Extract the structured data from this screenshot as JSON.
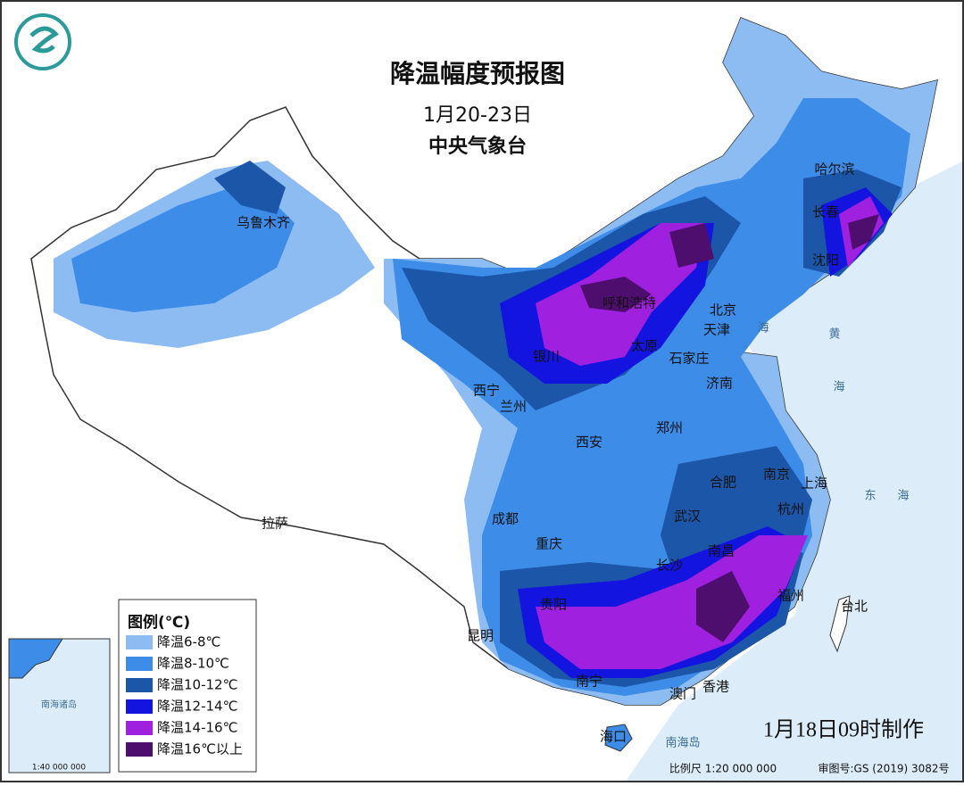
{
  "header": {
    "title": "降温幅度预报图",
    "date_range": "1月20-23日",
    "issuer": "中央气象台"
  },
  "legend": {
    "title": "图例(℃)",
    "items": [
      {
        "label": "降温6-8℃",
        "color": "#8cbcf2"
      },
      {
        "label": "降温8-10℃",
        "color": "#3c8ce8"
      },
      {
        "label": "降温10-12℃",
        "color": "#1c56a8"
      },
      {
        "label": "降温12-14℃",
        "color": "#1414e0"
      },
      {
        "label": "降温14-16℃",
        "color": "#a020e0"
      },
      {
        "label": "降温16℃以上",
        "color": "#4e0e6e"
      }
    ]
  },
  "cities": [
    "乌鲁木齐",
    "哈尔滨",
    "长春",
    "沈阳",
    "呼和浩特",
    "北京",
    "天津",
    "太原",
    "石家庄",
    "银川",
    "济南",
    "西宁",
    "兰州",
    "郑州",
    "西安",
    "合肥",
    "南京",
    "上海",
    "杭州",
    "拉萨",
    "成都",
    "武汉",
    "重庆",
    "南昌",
    "长沙",
    "福州",
    "台北",
    "贵阳",
    "昆明",
    "南宁",
    "澳门",
    "香港",
    "海口"
  ],
  "seas": [
    "海",
    "黄",
    "海",
    "东",
    "海",
    "南海岛"
  ],
  "inset": {
    "label": "南海诸岛",
    "scale": "1:40 000 000"
  },
  "footer": {
    "scale": "比例尺 1:20 000 000",
    "approval": "审图号:GS (2019) 3082号",
    "made": "1月18日09时制作"
  }
}
